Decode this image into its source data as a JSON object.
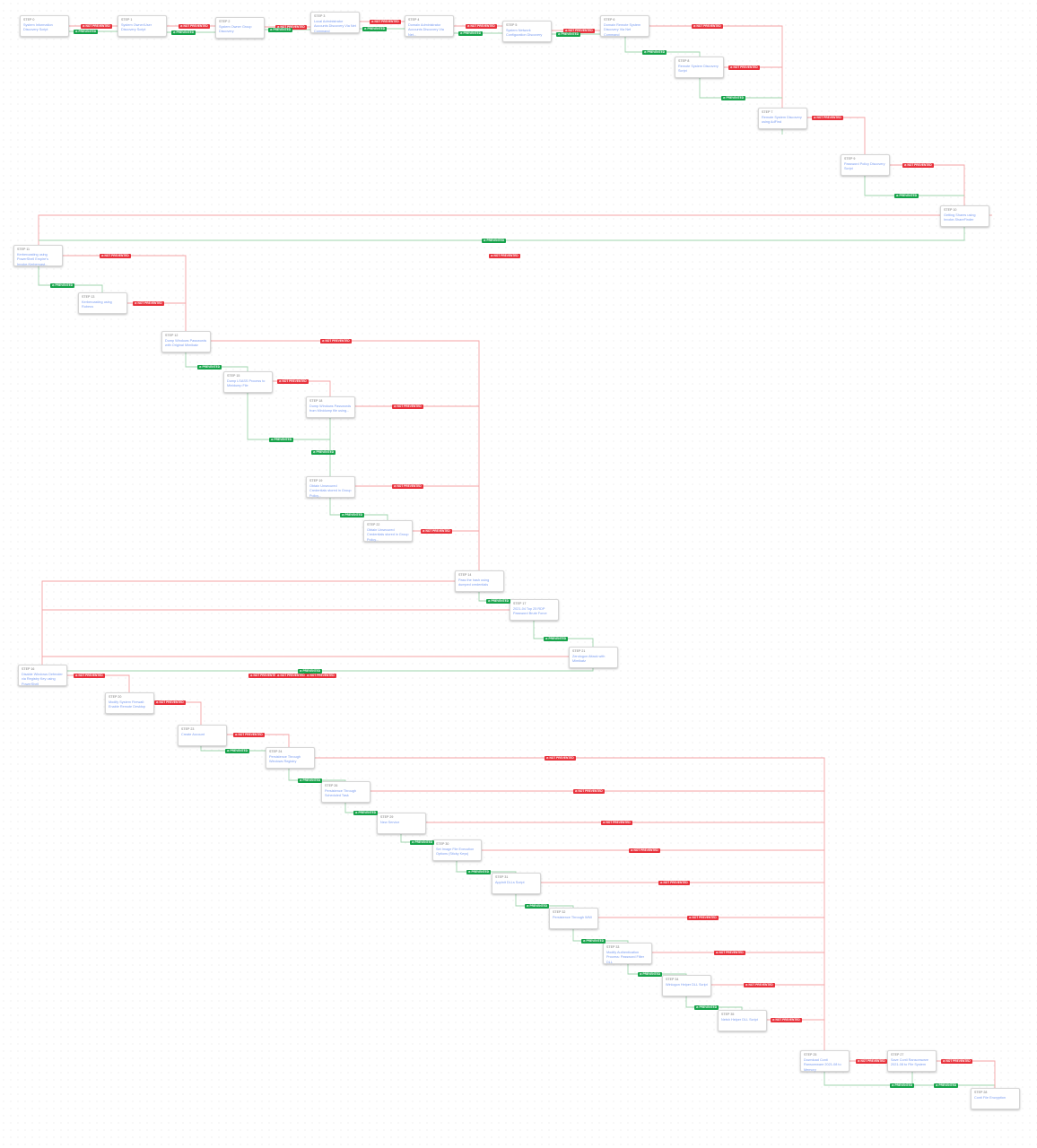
{
  "labels": {
    "not_prevented": "⊘ NOT PREVENTED",
    "prevented": "⊘ PREVENTED"
  },
  "colors": {
    "not_prevented": "#e8323c",
    "prevented": "#16a34a",
    "title_text": "#7a9cf0"
  },
  "steps": [
    {
      "id": 0,
      "label": "STEP 0",
      "title": "System Information Discovery Script"
    },
    {
      "id": 1,
      "label": "STEP 1",
      "title": "System Owner/User Discovery Script"
    },
    {
      "id": 2,
      "label": "STEP 2",
      "title": "System Owner Group Discovery"
    },
    {
      "id": 3,
      "label": "STEP 3",
      "title": "Local Administrator Accounts Discovery Via Net Command"
    },
    {
      "id": 4,
      "label": "STEP 4",
      "title": "Domain Administrator Accounts Discovery Via Net..."
    },
    {
      "id": 5,
      "label": "STEP 5",
      "title": "System Network Configuration Discovery"
    },
    {
      "id": 6,
      "label": "STEP 6",
      "title": "Domain Remote System Discovery Via Net Command"
    },
    {
      "id": 8,
      "label": "STEP 8",
      "title": "Remote System Discovery Script"
    },
    {
      "id": 7,
      "label": "STEP 7",
      "title": "Remote System Discovery using AdFind"
    },
    {
      "id": 9,
      "label": "STEP 9",
      "title": "Password Policy Discovery Script"
    },
    {
      "id": 10,
      "label": "STEP 10",
      "title": "Getting Shares using Invoke-ShareFinder"
    },
    {
      "id": 11,
      "label": "STEP 11",
      "title": "Kerberoasting using PowerShell Empire's Invoke-Kerberoast..."
    },
    {
      "id": 13,
      "label": "STEP 13",
      "title": "Kerberoasting using Rubeus"
    },
    {
      "id": 12,
      "label": "STEP 12",
      "title": "Dump Windows Passwords with Original Mimikatz"
    },
    {
      "id": 15,
      "label": "STEP 15",
      "title": "Dump LSASS Process to Minidump File"
    },
    {
      "id": 18,
      "label": "STEP 18",
      "title": "Dump Windows Passwords from Minidump file using..."
    },
    {
      "id": 19,
      "label": "STEP 19",
      "title": "Obtain Unsecured Credentials stored in Group Policy..."
    },
    {
      "id": 22,
      "label": "STEP 22",
      "title": "Obtain Unsecured Credentials stored in Group Policy..."
    },
    {
      "id": 14,
      "label": "STEP 14",
      "title": "Pass the hash using dumped credentials"
    },
    {
      "id": 17,
      "label": "STEP 17",
      "title": "2021-04 Top 25 RDP Password Brute Force"
    },
    {
      "id": 21,
      "label": "STEP 21",
      "title": "Zerologon Attack with Mimikatz"
    },
    {
      "id": 16,
      "label": "STEP 16",
      "title": "Disable Windows Defender via Registry Key using PowerShell"
    },
    {
      "id": 20,
      "label": "STEP 20",
      "title": "Modify System Firewall: Enable Remote Desktop"
    },
    {
      "id": 23,
      "label": "STEP 23",
      "title": "Create Account"
    },
    {
      "id": 24,
      "label": "STEP 24",
      "title": "Persistence Through Windows Registry"
    },
    {
      "id": 26,
      "label": "STEP 26",
      "title": "Persistence Through Scheduled Task"
    },
    {
      "id": 29,
      "label": "STEP 29",
      "title": "New Service"
    },
    {
      "id": 30,
      "label": "STEP 30",
      "title": "Set Image File Execution Options (Sticky Keys)"
    },
    {
      "id": 31,
      "label": "STEP 31",
      "title": "AppInit DLLs Script"
    },
    {
      "id": 32,
      "label": "STEP 32",
      "title": "Persistence Through WMI"
    },
    {
      "id": 33,
      "label": "STEP 33",
      "title": "Modify Authentication Process: Password Filter DLL"
    },
    {
      "id": 34,
      "label": "STEP 34",
      "title": "Winlogon Helper DLL Script"
    },
    {
      "id": 35,
      "label": "STEP 35",
      "title": "Netsh Helper DLL Script"
    },
    {
      "id": 25,
      "label": "STEP 25",
      "title": "Download Conti Ransomware 2021-08 to Memory"
    },
    {
      "id": 27,
      "label": "STEP 27",
      "title": "Save Conti Ransomware 2021-08 to File System"
    },
    {
      "id": 28,
      "label": "STEP 28",
      "title": "Conti File Encryption"
    }
  ]
}
